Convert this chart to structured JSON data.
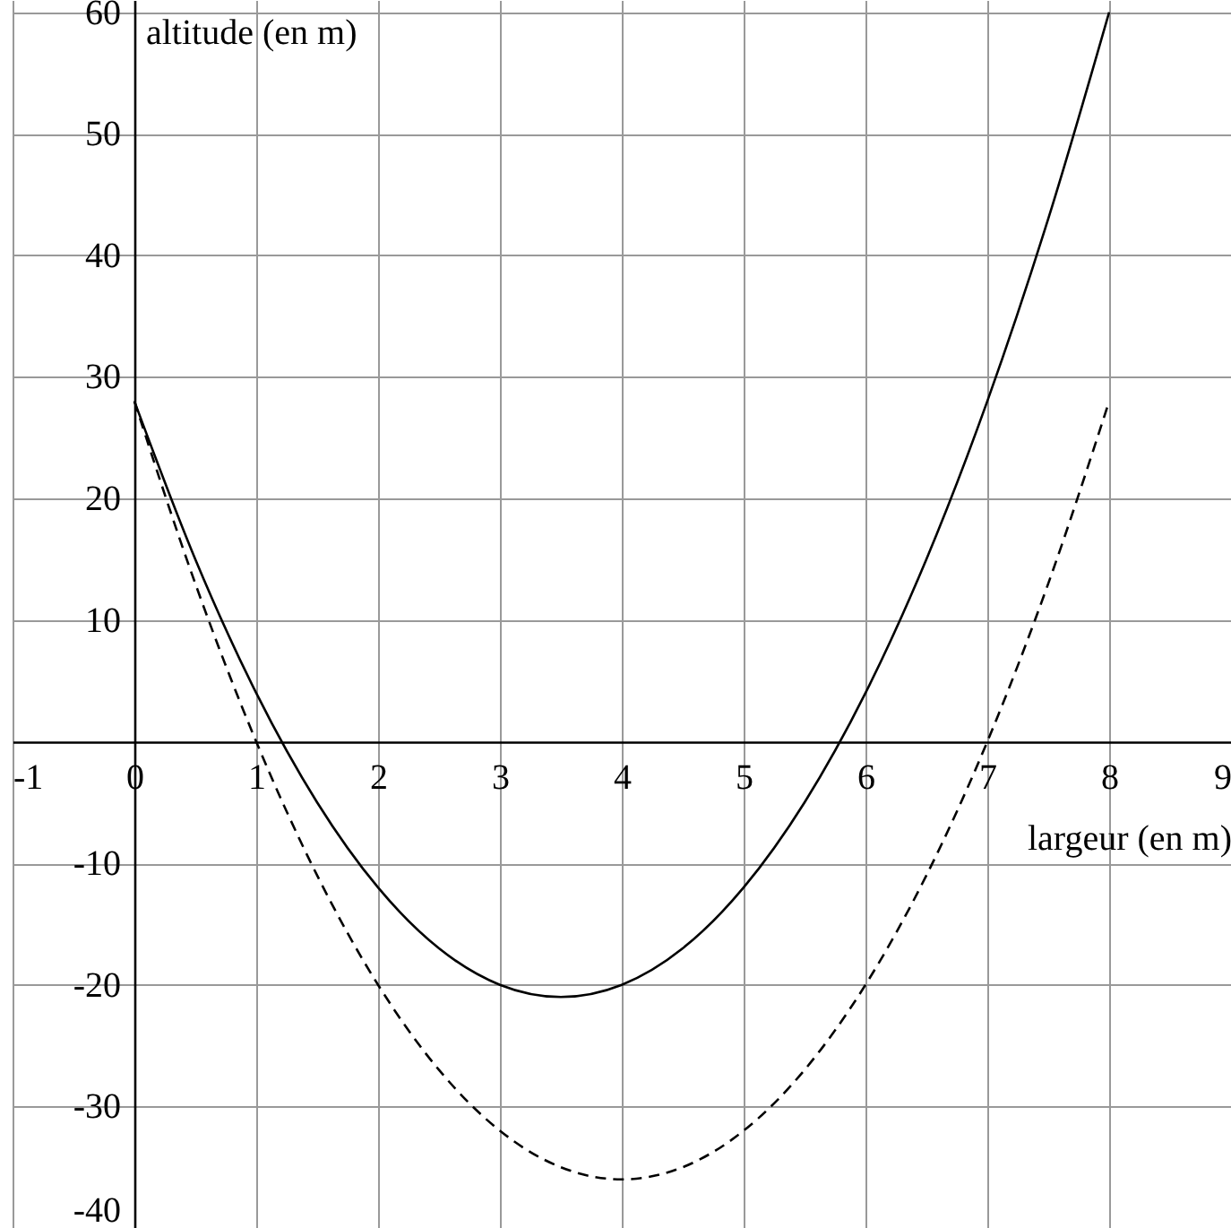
{
  "chart_data": {
    "type": "line",
    "xlabel": "largeur (en m)",
    "ylabel": "altitude (en m)",
    "xlim": [
      -1,
      9
    ],
    "ylim": [
      -40,
      61
    ],
    "xticks": [
      -1,
      0,
      1,
      2,
      3,
      4,
      5,
      6,
      7,
      8,
      9
    ],
    "yticks": [
      -40,
      -30,
      -20,
      -10,
      10,
      20,
      30,
      40,
      50,
      60
    ],
    "grid": true,
    "series": [
      {
        "color": "#000000",
        "line_style": "solid",
        "x": [
          0,
          0.5,
          1,
          1.5,
          2,
          2.5,
          3,
          3.5,
          4,
          4.5,
          5,
          5.5,
          6,
          6.5,
          7,
          7.5,
          8
        ],
        "values": [
          28,
          15,
          4,
          -5,
          -12,
          -17,
          -20,
          -21,
          -20,
          -17,
          -12,
          -5,
          4,
          15,
          28,
          43,
          60
        ]
      },
      {
        "color": "#000000",
        "line_style": "dashed",
        "x": [
          0,
          0.5,
          1,
          1.5,
          2,
          2.5,
          3,
          3.5,
          4,
          4.5,
          5,
          5.5,
          6,
          6.5,
          7,
          7.5,
          8
        ],
        "values": [
          28,
          13,
          0,
          -11,
          -20,
          -27,
          -32,
          -35,
          -36,
          -35,
          -32,
          -27,
          -20,
          -11,
          0,
          13,
          28
        ]
      }
    ]
  }
}
